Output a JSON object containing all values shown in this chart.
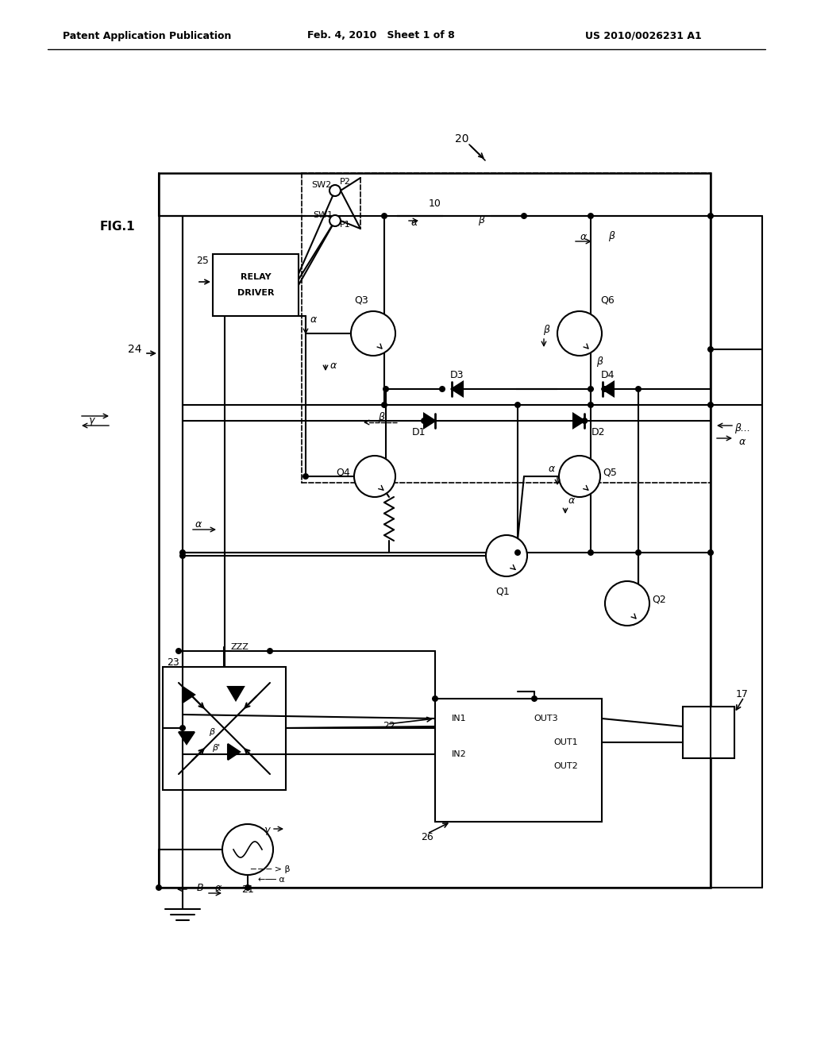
{
  "header_left": "Patent Application Publication",
  "header_mid": "Feb. 4, 2010   Sheet 1 of 8",
  "header_right": "US 2010/0026231 A1",
  "fig_label": "FIG.1",
  "bg_color": "#ffffff",
  "lc": "#000000"
}
